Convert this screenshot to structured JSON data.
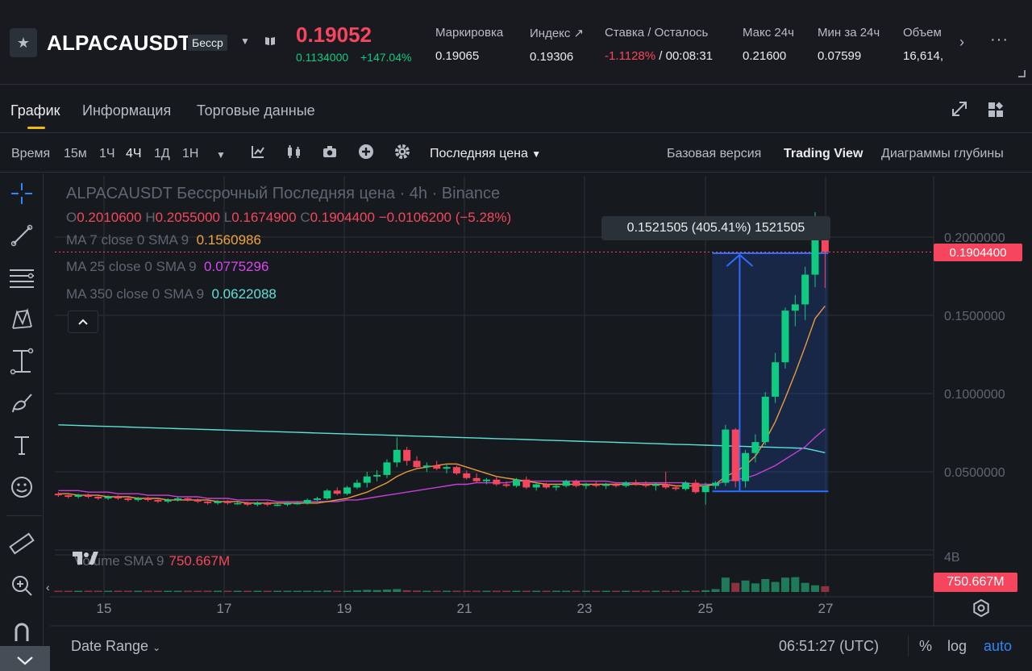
{
  "ticker": {
    "symbol": "ALPACAUSDT",
    "contract_type": "Бессp",
    "last_price": "0.19052",
    "sub_price": "0.1134000",
    "change_pct": "+147.04%",
    "stats": [
      {
        "label": "Маркировка",
        "value": "0.19065"
      },
      {
        "label": "Индекс ↗",
        "value": "0.19306"
      },
      {
        "label": "Ставка / Осталось",
        "value_neg": "-1.1128%",
        "value_rest": " /  00:08:31"
      },
      {
        "label": "Макс 24ч",
        "value": "0.21600"
      },
      {
        "label": "Мин за 24ч",
        "value": "0.07599"
      },
      {
        "label": "Объем",
        "value": "16,614,"
      }
    ]
  },
  "tabs": [
    {
      "label": "График",
      "active": true
    },
    {
      "label": "Информация",
      "active": false
    },
    {
      "label": "Торговые данные",
      "active": false
    }
  ],
  "toolbar": {
    "time_label": "Время",
    "intervals": [
      "15м",
      "1Ч",
      "4Ч",
      "1Д",
      "1Н"
    ],
    "selected_interval": "4Ч",
    "price_source": "Последняя цена",
    "views": [
      "Базовая версия",
      "Trading View",
      "Диаграммы глубины"
    ],
    "selected_view": "Trading View"
  },
  "legend": {
    "title": "ALPACAUSDT Бессрочный Последняя цена · 4h · Binance",
    "ohlc": {
      "o_key": "O",
      "o": "0.2010600",
      "h_key": "H",
      "h": "0.2055000",
      "l_key": "L",
      "l": "0.1674900",
      "c_key": "C",
      "c": "0.1904400",
      "change": "−0.0106200 (−5.28%)"
    },
    "ma": [
      {
        "label": "MA 7 close 0 SMA 9",
        "value": "0.1560986",
        "color": "#f0a33c"
      },
      {
        "label": "MA 25 close 0 SMA 9",
        "value": "0.0775296",
        "color": "#d946ef"
      },
      {
        "label": "MA 350 close 0 SMA 9",
        "value": "0.0622088",
        "color": "#5ee0d8"
      }
    ],
    "volume_label": "Volume SMA 9",
    "volume_value": "750.667M"
  },
  "measure": {
    "text": "0.1521505 (405.41%) 1521505"
  },
  "price_axis": {
    "ticks": [
      "0.2000000",
      "0.1500000",
      "0.1000000",
      "0.0500000"
    ],
    "current_price_tag": "0.1904400",
    "volume_tick": "4B",
    "volume_tag": "750.667M"
  },
  "time_axis": {
    "ticks": [
      "15",
      "17",
      "19",
      "21",
      "23",
      "25",
      "27"
    ]
  },
  "bottom": {
    "date_range": "Date Range",
    "clock": "06:51:27 (UTC)",
    "percent": "%",
    "log": "log",
    "auto": "auto"
  },
  "chart_data": {
    "type": "candlestick",
    "timeframe": "4h",
    "x_range": [
      "14",
      "27"
    ],
    "ylim": [
      0.0,
      0.22
    ],
    "colors": {
      "up": "#0ecb81",
      "down": "#f6465d"
    },
    "candles": [
      {
        "o": 0.036,
        "h": 0.037,
        "l": 0.034,
        "c": 0.035
      },
      {
        "o": 0.035,
        "h": 0.036,
        "l": 0.033,
        "c": 0.034
      },
      {
        "o": 0.034,
        "h": 0.036,
        "l": 0.033,
        "c": 0.035
      },
      {
        "o": 0.035,
        "h": 0.036,
        "l": 0.033,
        "c": 0.034
      },
      {
        "o": 0.034,
        "h": 0.035,
        "l": 0.032,
        "c": 0.033
      },
      {
        "o": 0.033,
        "h": 0.035,
        "l": 0.032,
        "c": 0.034
      },
      {
        "o": 0.034,
        "h": 0.035,
        "l": 0.032,
        "c": 0.033
      },
      {
        "o": 0.033,
        "h": 0.034,
        "l": 0.031,
        "c": 0.032
      },
      {
        "o": 0.032,
        "h": 0.034,
        "l": 0.031,
        "c": 0.033
      },
      {
        "o": 0.033,
        "h": 0.034,
        "l": 0.031,
        "c": 0.032
      },
      {
        "o": 0.032,
        "h": 0.033,
        "l": 0.03,
        "c": 0.031
      },
      {
        "o": 0.031,
        "h": 0.033,
        "l": 0.03,
        "c": 0.032
      },
      {
        "o": 0.032,
        "h": 0.034,
        "l": 0.031,
        "c": 0.033
      },
      {
        "o": 0.033,
        "h": 0.034,
        "l": 0.031,
        "c": 0.032
      },
      {
        "o": 0.032,
        "h": 0.033,
        "l": 0.03,
        "c": 0.031
      },
      {
        "o": 0.031,
        "h": 0.032,
        "l": 0.029,
        "c": 0.03
      },
      {
        "o": 0.03,
        "h": 0.032,
        "l": 0.029,
        "c": 0.031
      },
      {
        "o": 0.031,
        "h": 0.032,
        "l": 0.029,
        "c": 0.03
      },
      {
        "o": 0.03,
        "h": 0.031,
        "l": 0.029,
        "c": 0.03
      },
      {
        "o": 0.03,
        "h": 0.031,
        "l": 0.028,
        "c": 0.029
      },
      {
        "o": 0.029,
        "h": 0.031,
        "l": 0.028,
        "c": 0.03
      },
      {
        "o": 0.03,
        "h": 0.031,
        "l": 0.028,
        "c": 0.029
      },
      {
        "o": 0.029,
        "h": 0.03,
        "l": 0.028,
        "c": 0.029
      },
      {
        "o": 0.029,
        "h": 0.031,
        "l": 0.028,
        "c": 0.03
      },
      {
        "o": 0.03,
        "h": 0.031,
        "l": 0.029,
        "c": 0.03
      },
      {
        "o": 0.03,
        "h": 0.033,
        "l": 0.029,
        "c": 0.032
      },
      {
        "o": 0.032,
        "h": 0.034,
        "l": 0.031,
        "c": 0.033
      },
      {
        "o": 0.033,
        "h": 0.039,
        "l": 0.032,
        "c": 0.038
      },
      {
        "o": 0.038,
        "h": 0.04,
        "l": 0.035,
        "c": 0.036
      },
      {
        "o": 0.036,
        "h": 0.041,
        "l": 0.035,
        "c": 0.04
      },
      {
        "o": 0.04,
        "h": 0.045,
        "l": 0.039,
        "c": 0.043
      },
      {
        "o": 0.043,
        "h": 0.05,
        "l": 0.04,
        "c": 0.047
      },
      {
        "o": 0.047,
        "h": 0.051,
        "l": 0.044,
        "c": 0.048
      },
      {
        "o": 0.048,
        "h": 0.058,
        "l": 0.046,
        "c": 0.056
      },
      {
        "o": 0.056,
        "h": 0.072,
        "l": 0.053,
        "c": 0.064
      },
      {
        "o": 0.064,
        "h": 0.066,
        "l": 0.054,
        "c": 0.057
      },
      {
        "o": 0.057,
        "h": 0.06,
        "l": 0.052,
        "c": 0.053
      },
      {
        "o": 0.053,
        "h": 0.056,
        "l": 0.05,
        "c": 0.054
      },
      {
        "o": 0.054,
        "h": 0.057,
        "l": 0.051,
        "c": 0.052
      },
      {
        "o": 0.052,
        "h": 0.055,
        "l": 0.049,
        "c": 0.053
      },
      {
        "o": 0.053,
        "h": 0.054,
        "l": 0.048,
        "c": 0.049
      },
      {
        "o": 0.049,
        "h": 0.051,
        "l": 0.045,
        "c": 0.046
      },
      {
        "o": 0.046,
        "h": 0.049,
        "l": 0.043,
        "c": 0.044
      },
      {
        "o": 0.044,
        "h": 0.046,
        "l": 0.042,
        "c": 0.045
      },
      {
        "o": 0.045,
        "h": 0.047,
        "l": 0.041,
        "c": 0.042
      },
      {
        "o": 0.042,
        "h": 0.044,
        "l": 0.04,
        "c": 0.041
      },
      {
        "o": 0.041,
        "h": 0.046,
        "l": 0.04,
        "c": 0.045
      },
      {
        "o": 0.045,
        "h": 0.047,
        "l": 0.039,
        "c": 0.04
      },
      {
        "o": 0.04,
        "h": 0.043,
        "l": 0.038,
        "c": 0.042
      },
      {
        "o": 0.042,
        "h": 0.043,
        "l": 0.039,
        "c": 0.04
      },
      {
        "o": 0.04,
        "h": 0.042,
        "l": 0.038,
        "c": 0.041
      },
      {
        "o": 0.041,
        "h": 0.045,
        "l": 0.04,
        "c": 0.044
      },
      {
        "o": 0.044,
        "h": 0.045,
        "l": 0.04,
        "c": 0.041
      },
      {
        "o": 0.041,
        "h": 0.043,
        "l": 0.039,
        "c": 0.042
      },
      {
        "o": 0.042,
        "h": 0.044,
        "l": 0.04,
        "c": 0.041
      },
      {
        "o": 0.041,
        "h": 0.043,
        "l": 0.039,
        "c": 0.042
      },
      {
        "o": 0.042,
        "h": 0.043,
        "l": 0.04,
        "c": 0.041
      },
      {
        "o": 0.041,
        "h": 0.044,
        "l": 0.04,
        "c": 0.043
      },
      {
        "o": 0.043,
        "h": 0.045,
        "l": 0.041,
        "c": 0.042
      },
      {
        "o": 0.042,
        "h": 0.044,
        "l": 0.04,
        "c": 0.041
      },
      {
        "o": 0.041,
        "h": 0.043,
        "l": 0.038,
        "c": 0.042
      },
      {
        "o": 0.042,
        "h": 0.05,
        "l": 0.039,
        "c": 0.04
      },
      {
        "o": 0.04,
        "h": 0.041,
        "l": 0.038,
        "c": 0.039
      },
      {
        "o": 0.039,
        "h": 0.044,
        "l": 0.038,
        "c": 0.043
      },
      {
        "o": 0.043,
        "h": 0.045,
        "l": 0.036,
        "c": 0.037
      },
      {
        "o": 0.037,
        "h": 0.043,
        "l": 0.029,
        "c": 0.041
      },
      {
        "o": 0.041,
        "h": 0.044,
        "l": 0.039,
        "c": 0.043
      },
      {
        "o": 0.043,
        "h": 0.08,
        "l": 0.041,
        "c": 0.077
      },
      {
        "o": 0.077,
        "h": 0.078,
        "l": 0.04,
        "c": 0.044
      },
      {
        "o": 0.044,
        "h": 0.064,
        "l": 0.04,
        "c": 0.062
      },
      {
        "o": 0.062,
        "h": 0.074,
        "l": 0.056,
        "c": 0.069
      },
      {
        "o": 0.069,
        "h": 0.101,
        "l": 0.067,
        "c": 0.098
      },
      {
        "o": 0.098,
        "h": 0.126,
        "l": 0.094,
        "c": 0.12
      },
      {
        "o": 0.12,
        "h": 0.155,
        "l": 0.116,
        "c": 0.153
      },
      {
        "o": 0.153,
        "h": 0.163,
        "l": 0.143,
        "c": 0.157
      },
      {
        "o": 0.157,
        "h": 0.181,
        "l": 0.147,
        "c": 0.176
      },
      {
        "o": 0.176,
        "h": 0.216,
        "l": 0.168,
        "c": 0.201
      },
      {
        "o": 0.20106,
        "h": 0.2055,
        "l": 0.16749,
        "c": 0.19044
      }
    ],
    "ma7": [
      0.036,
      0.036,
      0.035,
      0.035,
      0.035,
      0.034,
      0.034,
      0.034,
      0.033,
      0.033,
      0.033,
      0.032,
      0.032,
      0.032,
      0.032,
      0.032,
      0.031,
      0.031,
      0.031,
      0.03,
      0.03,
      0.03,
      0.03,
      0.03,
      0.03,
      0.03,
      0.03,
      0.031,
      0.032,
      0.033,
      0.035,
      0.037,
      0.04,
      0.043,
      0.047,
      0.05,
      0.052,
      0.053,
      0.054,
      0.055,
      0.055,
      0.053,
      0.051,
      0.049,
      0.047,
      0.046,
      0.045,
      0.044,
      0.043,
      0.042,
      0.042,
      0.042,
      0.042,
      0.042,
      0.042,
      0.042,
      0.042,
      0.042,
      0.042,
      0.042,
      0.042,
      0.042,
      0.041,
      0.041,
      0.041,
      0.041,
      0.042,
      0.047,
      0.05,
      0.054,
      0.06,
      0.07,
      0.082,
      0.097,
      0.113,
      0.13,
      0.148,
      0.156
    ],
    "ma25": [
      0.038,
      0.038,
      0.038,
      0.037,
      0.037,
      0.037,
      0.036,
      0.036,
      0.036,
      0.035,
      0.035,
      0.035,
      0.034,
      0.034,
      0.034,
      0.033,
      0.033,
      0.033,
      0.032,
      0.032,
      0.032,
      0.032,
      0.031,
      0.031,
      0.031,
      0.031,
      0.031,
      0.031,
      0.031,
      0.032,
      0.032,
      0.033,
      0.034,
      0.035,
      0.036,
      0.037,
      0.038,
      0.039,
      0.04,
      0.041,
      0.042,
      0.042,
      0.043,
      0.043,
      0.043,
      0.043,
      0.044,
      0.044,
      0.044,
      0.044,
      0.044,
      0.044,
      0.044,
      0.044,
      0.044,
      0.044,
      0.043,
      0.043,
      0.043,
      0.043,
      0.043,
      0.043,
      0.043,
      0.043,
      0.042,
      0.042,
      0.042,
      0.044,
      0.045,
      0.046,
      0.048,
      0.051,
      0.054,
      0.058,
      0.062,
      0.066,
      0.072,
      0.0775296
    ],
    "ma350": [
      0.08,
      0.0798,
      0.0796,
      0.0794,
      0.0792,
      0.079,
      0.0788,
      0.0786,
      0.0784,
      0.0782,
      0.078,
      0.0778,
      0.0776,
      0.0774,
      0.0772,
      0.077,
      0.0768,
      0.0766,
      0.0764,
      0.0762,
      0.076,
      0.0758,
      0.0756,
      0.0754,
      0.0752,
      0.075,
      0.0748,
      0.0746,
      0.0744,
      0.0742,
      0.074,
      0.0738,
      0.0736,
      0.0734,
      0.0732,
      0.073,
      0.0728,
      0.0726,
      0.0724,
      0.0722,
      0.072,
      0.0718,
      0.0716,
      0.0714,
      0.0712,
      0.071,
      0.0708,
      0.0706,
      0.0704,
      0.0702,
      0.07,
      0.0698,
      0.0696,
      0.0694,
      0.0692,
      0.069,
      0.0688,
      0.0686,
      0.0684,
      0.0682,
      0.068,
      0.0678,
      0.0676,
      0.0674,
      0.0672,
      0.067,
      0.0668,
      0.0666,
      0.0664,
      0.0662,
      0.066,
      0.0658,
      0.0656,
      0.0654,
      0.0652,
      0.065,
      0.0636,
      0.0622088
    ],
    "volume": [
      0.05,
      0.04,
      0.05,
      0.04,
      0.04,
      0.05,
      0.04,
      0.04,
      0.05,
      0.04,
      0.05,
      0.04,
      0.05,
      0.05,
      0.04,
      0.04,
      0.05,
      0.04,
      0.04,
      0.05,
      0.04,
      0.05,
      0.04,
      0.04,
      0.05,
      0.06,
      0.07,
      0.15,
      0.1,
      0.12,
      0.18,
      0.22,
      0.2,
      0.25,
      0.3,
      0.18,
      0.15,
      0.12,
      0.1,
      0.1,
      0.12,
      0.1,
      0.09,
      0.08,
      0.1,
      0.08,
      0.09,
      0.1,
      0.08,
      0.07,
      0.08,
      0.09,
      0.08,
      0.07,
      0.08,
      0.07,
      0.07,
      0.08,
      0.09,
      0.08,
      0.07,
      0.12,
      0.1,
      0.09,
      0.12,
      0.18,
      0.3,
      1.5,
      0.95,
      1.2,
      0.9,
      1.35,
      1.05,
      1.5,
      1.55,
      0.95,
      0.7,
      0.6
    ],
    "volume_unit": "B",
    "volume_ylim": [
      0,
      4
    ],
    "measure_range": {
      "from_price": 0.0375,
      "to_price": 0.1897,
      "start_candle": 66,
      "end_candle": 77
    },
    "grid": true
  }
}
